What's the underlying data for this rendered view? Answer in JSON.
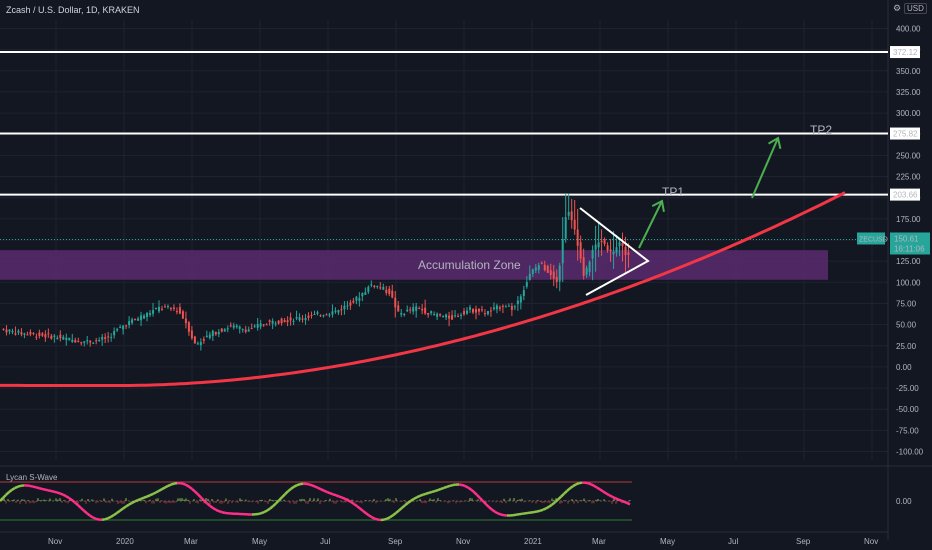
{
  "header": {
    "symbol_title": "Zcash / U.S. Dollar, 1D, KRAKEN",
    "currency": "USD",
    "settings_icon": "settings-icon"
  },
  "indicator": {
    "name": "Lycan S-Wave",
    "value_label": "0.00"
  },
  "colors": {
    "background": "#131722",
    "grid": "#1f2330",
    "candle_up": "#26a69a",
    "candle_down": "#ef5350",
    "zone_fill": "#5b2a6e",
    "curve": "#f23645",
    "arrow": "#4caf50",
    "level_line": "#ffffff",
    "price_badge": "#26a69a",
    "wave_pink": "#ff2e88",
    "wave_green": "#8bc34a",
    "osc_band_red": "#b23b3b",
    "osc_band_green": "#2e7d32"
  },
  "chart_data": {
    "type": "candlestick",
    "symbol": "ZECUSD",
    "ylim": [
      -110,
      410
    ],
    "y_ticks": [
      "400.00",
      "375.00",
      "350.00",
      "325.00",
      "300.00",
      "275.00",
      "250.00",
      "225.00",
      "200.00",
      "175.00",
      "150.00",
      "125.00",
      "100.00",
      "75.00",
      "50.00",
      "25.00",
      "0.00",
      "-25.00",
      "-50.00",
      "-75.00",
      "-100.00"
    ],
    "x_ticks": [
      "Nov",
      "2020",
      "Mar",
      "May",
      "Jul",
      "Sep",
      "Nov",
      "2021",
      "Mar",
      "May",
      "Jul",
      "Sep",
      "Nov"
    ],
    "last_price": {
      "label": "ZECUSD",
      "value": "150.61",
      "countdown": "16:11:06",
      "y": 150.61
    },
    "levels": [
      {
        "value": 372.12,
        "label": "372.12"
      },
      {
        "value": 275.82,
        "label": "275.82"
      },
      {
        "value": 203.66,
        "label": "203.66"
      }
    ],
    "zone": {
      "label": "Accumulation Zone",
      "low": 103,
      "high": 138
    },
    "targets": [
      {
        "label": "TP1"
      },
      {
        "label": "TP2"
      }
    ],
    "price_path": [
      [
        0,
        45
      ],
      [
        0.02,
        40
      ],
      [
        0.04,
        38
      ],
      [
        0.06,
        36
      ],
      [
        0.08,
        32
      ],
      [
        0.1,
        30
      ],
      [
        0.12,
        34
      ],
      [
        0.14,
        50
      ],
      [
        0.16,
        60
      ],
      [
        0.18,
        70
      ],
      [
        0.2,
        68
      ],
      [
        0.21,
        52
      ],
      [
        0.22,
        26
      ],
      [
        0.24,
        40
      ],
      [
        0.26,
        48
      ],
      [
        0.28,
        44
      ],
      [
        0.3,
        52
      ],
      [
        0.32,
        55
      ],
      [
        0.34,
        58
      ],
      [
        0.36,
        62
      ],
      [
        0.38,
        66
      ],
      [
        0.4,
        78
      ],
      [
        0.42,
        98
      ],
      [
        0.44,
        88
      ],
      [
        0.45,
        62
      ],
      [
        0.47,
        70
      ],
      [
        0.49,
        62
      ],
      [
        0.51,
        58
      ],
      [
        0.53,
        68
      ],
      [
        0.55,
        64
      ],
      [
        0.57,
        74
      ],
      [
        0.58,
        68
      ],
      [
        0.6,
        112
      ],
      [
        0.61,
        122
      ],
      [
        0.62,
        112
      ],
      [
        0.63,
        102
      ],
      [
        0.64,
        188
      ],
      [
        0.65,
        160
      ],
      [
        0.66,
        105
      ],
      [
        0.67,
        140
      ],
      [
        0.68,
        150
      ],
      [
        0.69,
        135
      ],
      [
        0.7,
        145
      ],
      [
        0.71,
        130
      ]
    ]
  }
}
